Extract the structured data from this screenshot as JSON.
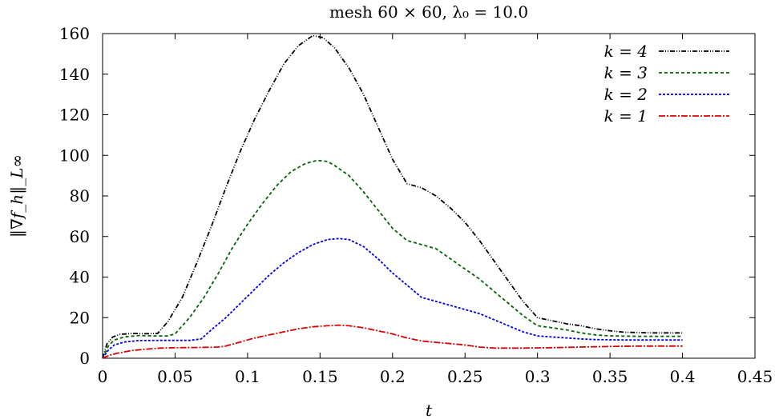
{
  "chart_data": {
    "type": "line",
    "title": "mesh 60 × 60, λ₀ = 10.0",
    "xlabel": "t",
    "ylabel": "‖∇f_h‖_L∞",
    "xlim": [
      0,
      0.45
    ],
    "ylim": [
      0,
      160
    ],
    "xticks": [
      0,
      0.05,
      0.1,
      0.15,
      0.2,
      0.25,
      0.3,
      0.35,
      0.4,
      0.45
    ],
    "xtick_labels": [
      "0",
      "0.05",
      "0.1",
      "0.15",
      "0.2",
      "0.25",
      "0.3",
      "0.35",
      "0.4",
      "0.45"
    ],
    "yticks": [
      0,
      20,
      40,
      60,
      80,
      100,
      120,
      140,
      160
    ],
    "ytick_labels": [
      "0",
      "20",
      "40",
      "60",
      "80",
      "100",
      "120",
      "140",
      "160"
    ],
    "grid": false,
    "legend_position": "top-right",
    "series": [
      {
        "name": "k = 4",
        "color": "#000000",
        "dash": "6 2 1 2 1 2",
        "points": [
          [
            0,
            0
          ],
          [
            0.003,
            7
          ],
          [
            0.007,
            10.5
          ],
          [
            0.012,
            11.8
          ],
          [
            0.02,
            12.2
          ],
          [
            0.03,
            12.1
          ],
          [
            0.038,
            12.2
          ],
          [
            0.045,
            18
          ],
          [
            0.055,
            30
          ],
          [
            0.065,
            47
          ],
          [
            0.075,
            65
          ],
          [
            0.085,
            84
          ],
          [
            0.095,
            102
          ],
          [
            0.105,
            118
          ],
          [
            0.115,
            132
          ],
          [
            0.125,
            145
          ],
          [
            0.135,
            154
          ],
          [
            0.145,
            159
          ],
          [
            0.152,
            158
          ],
          [
            0.16,
            153
          ],
          [
            0.17,
            143
          ],
          [
            0.18,
            130
          ],
          [
            0.19,
            114
          ],
          [
            0.2,
            98
          ],
          [
            0.21,
            86
          ],
          [
            0.22,
            84
          ],
          [
            0.23,
            80
          ],
          [
            0.24,
            74
          ],
          [
            0.25,
            67
          ],
          [
            0.26,
            58
          ],
          [
            0.27,
            48
          ],
          [
            0.28,
            38
          ],
          [
            0.29,
            28
          ],
          [
            0.3,
            20
          ],
          [
            0.31,
            18.5
          ],
          [
            0.32,
            17
          ],
          [
            0.33,
            16
          ],
          [
            0.34,
            14.5
          ],
          [
            0.35,
            13.5
          ],
          [
            0.36,
            12.8
          ],
          [
            0.38,
            12.5
          ],
          [
            0.4,
            12.5
          ]
        ]
      },
      {
        "name": "k = 3",
        "color": "#006400",
        "dash": "4 3",
        "points": [
          [
            0,
            0
          ],
          [
            0.004,
            6
          ],
          [
            0.008,
            9
          ],
          [
            0.015,
            10.5
          ],
          [
            0.025,
            11.2
          ],
          [
            0.035,
            11
          ],
          [
            0.045,
            11
          ],
          [
            0.05,
            12
          ],
          [
            0.06,
            20
          ],
          [
            0.07,
            30
          ],
          [
            0.08,
            42
          ],
          [
            0.09,
            55
          ],
          [
            0.1,
            66
          ],
          [
            0.11,
            76
          ],
          [
            0.12,
            85
          ],
          [
            0.13,
            92
          ],
          [
            0.14,
            96
          ],
          [
            0.148,
            97.5
          ],
          [
            0.155,
            97
          ],
          [
            0.16,
            95
          ],
          [
            0.17,
            90
          ],
          [
            0.18,
            82
          ],
          [
            0.19,
            73
          ],
          [
            0.2,
            64
          ],
          [
            0.21,
            58
          ],
          [
            0.22,
            56
          ],
          [
            0.23,
            54
          ],
          [
            0.24,
            49
          ],
          [
            0.25,
            44
          ],
          [
            0.26,
            39
          ],
          [
            0.27,
            33
          ],
          [
            0.28,
            27
          ],
          [
            0.29,
            21
          ],
          [
            0.3,
            16
          ],
          [
            0.31,
            15
          ],
          [
            0.32,
            14
          ],
          [
            0.33,
            12.5
          ],
          [
            0.34,
            11.5
          ],
          [
            0.35,
            11
          ],
          [
            0.37,
            10.8
          ],
          [
            0.4,
            10.8
          ]
        ]
      },
      {
        "name": "k = 2",
        "color": "#0000ee",
        "dash": "3 2",
        "points": [
          [
            0,
            0
          ],
          [
            0.004,
            4
          ],
          [
            0.008,
            6.5
          ],
          [
            0.015,
            8
          ],
          [
            0.025,
            8.7
          ],
          [
            0.04,
            8.8
          ],
          [
            0.06,
            8.8
          ],
          [
            0.068,
            9.5
          ],
          [
            0.075,
            14
          ],
          [
            0.085,
            20
          ],
          [
            0.095,
            27
          ],
          [
            0.105,
            34
          ],
          [
            0.115,
            41
          ],
          [
            0.125,
            47
          ],
          [
            0.135,
            52
          ],
          [
            0.145,
            56
          ],
          [
            0.155,
            58.5
          ],
          [
            0.163,
            59
          ],
          [
            0.17,
            58.5
          ],
          [
            0.18,
            55
          ],
          [
            0.19,
            49
          ],
          [
            0.2,
            42
          ],
          [
            0.21,
            36
          ],
          [
            0.22,
            30
          ],
          [
            0.23,
            28
          ],
          [
            0.24,
            26
          ],
          [
            0.25,
            24
          ],
          [
            0.26,
            22
          ],
          [
            0.27,
            19
          ],
          [
            0.28,
            16
          ],
          [
            0.29,
            13
          ],
          [
            0.3,
            11
          ],
          [
            0.31,
            10.5
          ],
          [
            0.32,
            10
          ],
          [
            0.33,
            9.5
          ],
          [
            0.34,
            9.2
          ],
          [
            0.36,
            9
          ],
          [
            0.4,
            9
          ]
        ]
      },
      {
        "name": "k = 1",
        "color": "#dd0000",
        "dash": "8 2 2 2",
        "points": [
          [
            0,
            0
          ],
          [
            0.005,
            1.5
          ],
          [
            0.01,
            2.5
          ],
          [
            0.02,
            3.8
          ],
          [
            0.03,
            4.5
          ],
          [
            0.04,
            5
          ],
          [
            0.05,
            5.2
          ],
          [
            0.065,
            5.3
          ],
          [
            0.08,
            5.5
          ],
          [
            0.085,
            6
          ],
          [
            0.095,
            8
          ],
          [
            0.105,
            10
          ],
          [
            0.115,
            11.5
          ],
          [
            0.125,
            13
          ],
          [
            0.135,
            14.5
          ],
          [
            0.145,
            15.5
          ],
          [
            0.155,
            16
          ],
          [
            0.163,
            16.3
          ],
          [
            0.17,
            16
          ],
          [
            0.18,
            15
          ],
          [
            0.19,
            13.5
          ],
          [
            0.2,
            12
          ],
          [
            0.21,
            10
          ],
          [
            0.22,
            8.5
          ],
          [
            0.23,
            7.8
          ],
          [
            0.24,
            7.2
          ],
          [
            0.25,
            6.5
          ],
          [
            0.26,
            5.5
          ],
          [
            0.27,
            5
          ],
          [
            0.29,
            5
          ],
          [
            0.31,
            5.2
          ],
          [
            0.33,
            5.5
          ],
          [
            0.35,
            5.8
          ],
          [
            0.37,
            6
          ],
          [
            0.4,
            6
          ]
        ]
      }
    ]
  }
}
